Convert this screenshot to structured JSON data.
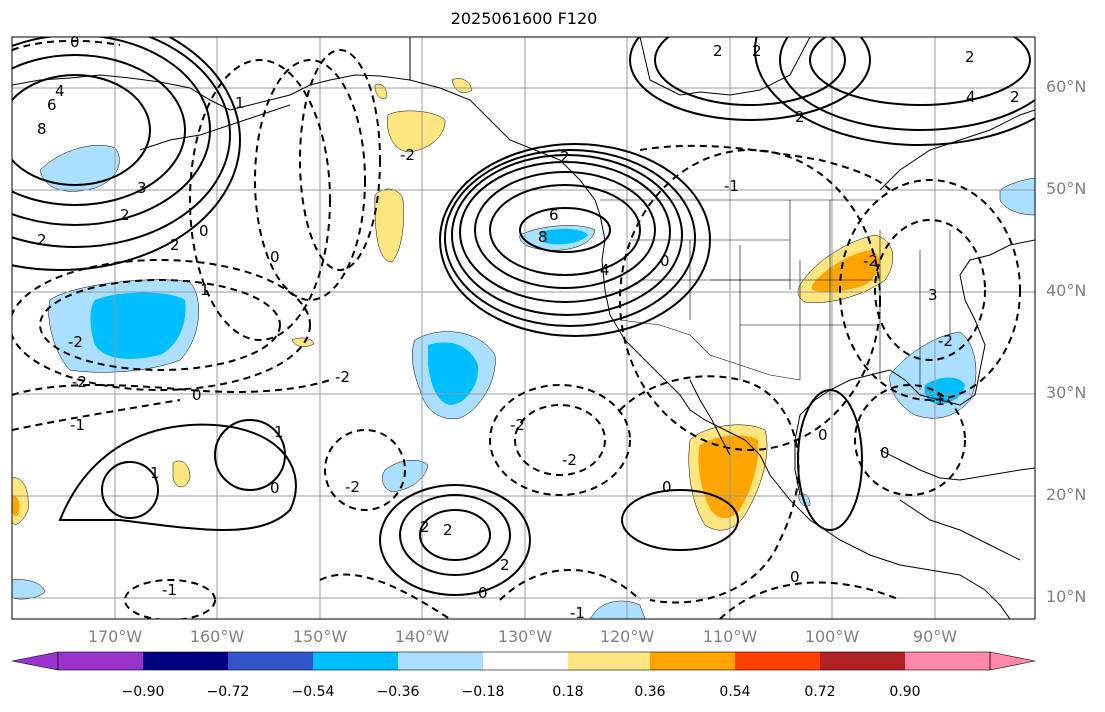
{
  "title": "2025061600 F120",
  "latitude_labels": [
    "60°N",
    "50°N",
    "40°N",
    "30°N",
    "20°N",
    "10°N"
  ],
  "longitude_labels": [
    "170°W",
    "160°W",
    "150°W",
    "140°W",
    "130°W",
    "120°W",
    "110°W",
    "100°W",
    "90°W"
  ],
  "colorbar": {
    "ticks": [
      "−0.90",
      "−0.72",
      "−0.54",
      "−0.36",
      "−0.18",
      "0.18",
      "0.36",
      "0.54",
      "0.72",
      "0.90"
    ],
    "colors": [
      "#9933cc",
      "#000080",
      "#3355cc",
      "#00bfff",
      "#aadfff",
      "#ffffff",
      "#ffe680",
      "#ffa500",
      "#ff4000",
      "#b22222",
      "#ff88aa"
    ]
  },
  "contour_labels": [
    "0",
    "4",
    "6",
    "8",
    "2",
    "3",
    "2",
    "2",
    "1",
    "0",
    "-2",
    "-2",
    "-2",
    "-1",
    "0",
    "-1",
    "1",
    "1",
    "0",
    "-2",
    "2",
    "2",
    "-2",
    "-2",
    "2",
    "6",
    "8",
    "4",
    "0",
    "-1",
    "2",
    "2",
    "3",
    "-2",
    "-2",
    "0",
    "0",
    "0",
    "0",
    "-1",
    "0",
    "2",
    "2",
    "4",
    "2",
    "1",
    "2",
    "-1",
    "0",
    "-2"
  ]
}
